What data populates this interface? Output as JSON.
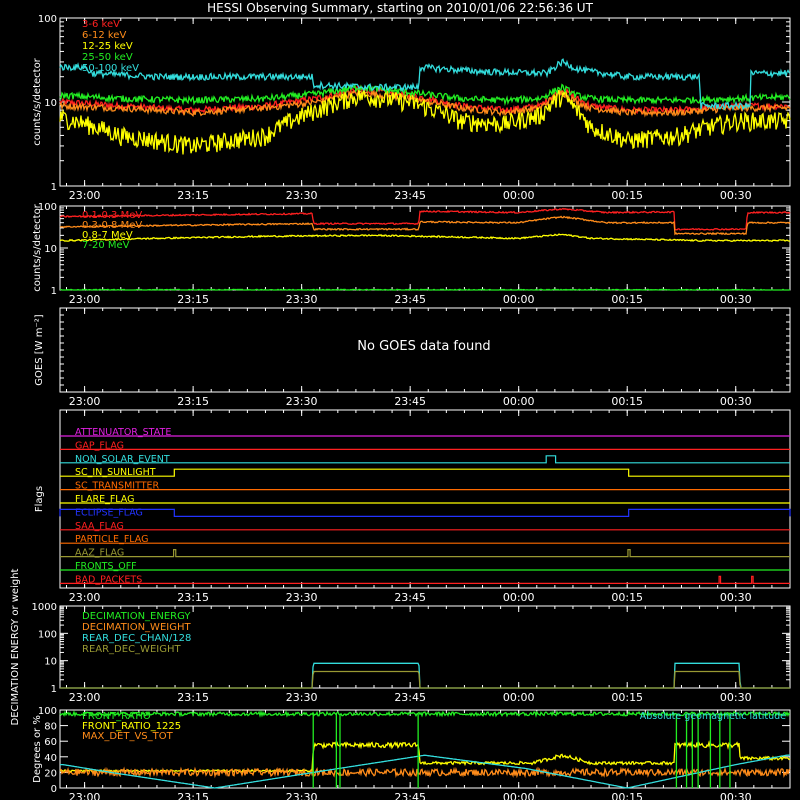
{
  "title": "HESSI Observing Summary, starting on 2010/01/06 22:56:36 UT",
  "colors": {
    "bg": "#000000",
    "axis": "#ffffff",
    "red": "#ff2020",
    "orange": "#ff8c1a",
    "yellow": "#ffff00",
    "green": "#22ee22",
    "cyan": "#33dddd",
    "magenta": "#e020e0",
    "blue": "#2233ff",
    "darkorange": "#ff6a00",
    "olive": "#999933",
    "salmon": "#ff4444"
  },
  "time_axis": {
    "start_minutes": 1376.6,
    "end_minutes": 1477.5,
    "tick_labels": [
      "23:00",
      "23:15",
      "23:30",
      "23:45",
      "00:00",
      "00:15",
      "00:30"
    ],
    "tick_minutes": [
      1380,
      1395,
      1410,
      1425,
      1440,
      1455,
      1470
    ]
  },
  "chart_data": [
    {
      "type": "line",
      "title": "",
      "ylabel": "counts/s/detector",
      "yscale": "log",
      "ylim": [
        1,
        100
      ],
      "yticks": [
        "1",
        "10",
        "100"
      ],
      "legend_position": "top-left",
      "series": [
        {
          "name": "3-6 keV",
          "color": "#ff2020",
          "x": [
            1377,
            1385,
            1395,
            1405,
            1412,
            1418,
            1425,
            1432,
            1438,
            1443,
            1446,
            1448,
            1450,
            1455,
            1462,
            1470,
            1477
          ],
          "y": [
            10,
            9,
            8,
            9,
            11,
            14,
            12,
            9,
            8,
            9,
            14,
            11,
            9,
            8,
            8,
            9,
            9
          ]
        },
        {
          "name": "6-12 keV",
          "color": "#ff8c1a",
          "x": [
            1377,
            1385,
            1395,
            1405,
            1412,
            1418,
            1425,
            1432,
            1438,
            1443,
            1446,
            1448,
            1450,
            1455,
            1462,
            1470,
            1477
          ],
          "y": [
            9,
            8.5,
            7.5,
            8.5,
            10,
            13,
            11,
            8.5,
            7.5,
            8.5,
            13,
            10,
            8.5,
            7.5,
            7.5,
            8.5,
            8.5
          ]
        },
        {
          "name": "12-25 keV",
          "color": "#ffff00",
          "x": [
            1377,
            1385,
            1395,
            1405,
            1412,
            1418,
            1425,
            1432,
            1438,
            1443,
            1446,
            1448,
            1450,
            1455,
            1462,
            1470,
            1477
          ],
          "y": [
            6.5,
            4,
            3,
            4,
            8,
            12,
            10,
            6,
            5.5,
            7,
            12,
            8,
            5,
            3.5,
            4,
            6,
            6
          ]
        },
        {
          "name": "25-50 keV",
          "color": "#22ee22",
          "x": [
            1377,
            1385,
            1395,
            1405,
            1412,
            1418,
            1425,
            1432,
            1438,
            1443,
            1446,
            1448,
            1450,
            1455,
            1462,
            1470,
            1477
          ],
          "y": [
            12,
            11,
            10.5,
            11,
            12.5,
            15,
            13,
            11,
            10.5,
            11,
            15,
            12,
            11,
            10.5,
            10.5,
            11,
            11.5
          ]
        },
        {
          "name": "50-100 keV",
          "color": "#33dddd",
          "x": [
            1377,
            1380,
            1381,
            1390,
            1400,
            1411.5,
            1411.6,
            1420,
            1426.2,
            1426.3,
            1435,
            1444,
            1446,
            1448,
            1450,
            1455,
            1465,
            1465.1,
            1472,
            1472.1,
            1477
          ],
          "y": [
            26,
            26,
            22,
            20,
            20,
            20,
            16,
            15,
            15,
            26,
            23,
            22,
            30,
            25,
            23,
            20,
            20,
            9,
            9,
            22,
            22
          ]
        }
      ]
    },
    {
      "type": "line",
      "title": "",
      "ylabel": "counts/s/detector",
      "yscale": "log",
      "ylim": [
        1,
        100
      ],
      "yticks": [
        "1",
        "10",
        "100"
      ],
      "legend_position": "top-left",
      "series": [
        {
          "name": "0.1-0.3 MeV",
          "color": "#ff2020",
          "x": [
            1377,
            1411.5,
            1411.6,
            1426.2,
            1426.3,
            1440,
            1446,
            1452,
            1461.5,
            1461.6,
            1471.5,
            1471.6,
            1477
          ],
          "y": [
            56,
            66,
            38,
            38,
            75,
            70,
            85,
            70,
            72,
            28,
            28,
            70,
            70
          ]
        },
        {
          "name": "0.3-0.8 MeV",
          "color": "#ff8c1a",
          "x": [
            1377,
            1411.5,
            1411.6,
            1426.2,
            1426.3,
            1440,
            1446,
            1452,
            1461.5,
            1461.6,
            1471.5,
            1471.6,
            1477
          ],
          "y": [
            32,
            38,
            28,
            28,
            42,
            40,
            55,
            40,
            40,
            22,
            22,
            40,
            40
          ]
        },
        {
          "name": "0.8-7 MeV",
          "color": "#ffff00",
          "x": [
            1377,
            1390,
            1405,
            1420,
            1440,
            1446,
            1450,
            1465,
            1477
          ],
          "y": [
            15,
            17,
            19,
            20,
            17,
            21,
            17,
            15,
            15
          ]
        },
        {
          "name": "7-20 MeV",
          "color": "#22ee22",
          "x": [
            1377,
            1477
          ],
          "y": [
            1,
            1
          ]
        }
      ]
    },
    {
      "type": "line",
      "title": "",
      "ylabel": "GOES [W m⁻²]",
      "message": "No GOES data found",
      "series": []
    },
    {
      "type": "line",
      "title": "",
      "ylabel": "Flags",
      "flags": [
        {
          "name": "ATTENUATOR_STATE",
          "color": "#e020e0",
          "steps": []
        },
        {
          "name": "GAP_FLAG",
          "color": "#ff2020",
          "steps": []
        },
        {
          "name": "NON_SOLAR_EVENT",
          "color": "#33dddd",
          "steps": [
            [
              1443.8,
              1445.1
            ]
          ]
        },
        {
          "name": "SC_IN_SUNLIGHT",
          "color": "#ffff00",
          "steps": [
            [
              1392.4,
              1455.2
            ]
          ]
        },
        {
          "name": "SC_TRANSMITTER",
          "color": "#ff6a00",
          "steps": []
        },
        {
          "name": "FLARE_FLAG",
          "color": "#ffff00",
          "steps": []
        },
        {
          "name": "ECLIPSE_FLAG",
          "color": "#2233ff",
          "steps": [
            [
              1376.6,
              1392.4
            ],
            [
              1455.2,
              1477.5
            ]
          ]
        },
        {
          "name": "SAA_FLAG",
          "color": "#ff2020",
          "steps": []
        },
        {
          "name": "PARTICLE_FLAG",
          "color": "#ff6a00",
          "steps": []
        },
        {
          "name": "AAZ_FLAG",
          "color": "#999933",
          "steps": [
            [
              1392.3,
              1392.6
            ],
            [
              1455.1,
              1455.4
            ]
          ]
        },
        {
          "name": "FRONTS_OFF",
          "color": "#22ee22",
          "steps": []
        },
        {
          "name": "BAD_PACKETS",
          "color": "#ff2020",
          "steps": [
            [
              1467.7,
              1467.9
            ],
            [
              1472.2,
              1472.4
            ]
          ]
        }
      ]
    },
    {
      "type": "line",
      "title": "",
      "ylabel": "DECIMATION ENERGY or weight",
      "yscale": "log",
      "ylim": [
        1,
        1000
      ],
      "yticks": [
        "1",
        "10",
        "100",
        "1000"
      ],
      "legend_position": "top-left",
      "series": [
        {
          "name": "DECIMATION_ENERGY",
          "color": "#22ee22",
          "x": [],
          "y": []
        },
        {
          "name": "DECIMATION_WEIGHT",
          "color": "#ff8c1a",
          "x": [],
          "y": []
        },
        {
          "name": "REAR_DEC_CHAN/128",
          "color": "#33dddd",
          "x": [
            1376.6,
            1411.5,
            1411.6,
            1426.2,
            1426.3,
            1461.5,
            1461.6,
            1470.5,
            1470.6,
            1477.5
          ],
          "y": [
            1,
            1,
            8,
            8,
            1,
            1,
            8,
            8,
            1,
            1
          ]
        },
        {
          "name": "REAR_DEC_WEIGHT",
          "color": "#999933",
          "x": [
            1376.6,
            1411.5,
            1411.6,
            1426.2,
            1426.3,
            1461.5,
            1461.6,
            1470.5,
            1470.6,
            1477.5
          ],
          "y": [
            1,
            1,
            4,
            4,
            1,
            1,
            4,
            4,
            1,
            1
          ]
        }
      ]
    },
    {
      "type": "line",
      "title": "",
      "ylabel": "Degrees or %",
      "ylim": [
        0,
        100
      ],
      "yticks": [
        "0",
        "20",
        "40",
        "60",
        "80",
        "100"
      ],
      "legend_position": "top-left",
      "annotation": "Absolute geomagnetic latitude",
      "series": [
        {
          "name": "FRONT_RATIO",
          "color": "#22ee22",
          "x": [
            1377,
            1477
          ],
          "y": [
            95,
            95
          ]
        },
        {
          "name": "FRONT_RATIO_1225",
          "color": "#ffff00",
          "x": [
            1377,
            1411.5,
            1411.6,
            1426.2,
            1426.3,
            1442,
            1446,
            1450,
            1461.5,
            1461.6,
            1470.5,
            1470.6,
            1477
          ],
          "y": [
            22,
            22,
            55,
            55,
            32,
            32,
            42,
            32,
            32,
            55,
            55,
            38,
            38
          ]
        },
        {
          "name": "MAX_DET_VS_TOT",
          "color": "#ff8c1a",
          "x": [
            1377,
            1477
          ],
          "y": [
            20,
            20
          ]
        },
        {
          "name": "Absolute geomagnetic latitude",
          "color": "#33dddd",
          "x": [
            1377,
            1385,
            1398,
            1413,
            1427,
            1441,
            1455,
            1470,
            1477
          ],
          "y": [
            30,
            18,
            0,
            22,
            42,
            25,
            0,
            30,
            42
          ]
        }
      ]
    }
  ]
}
